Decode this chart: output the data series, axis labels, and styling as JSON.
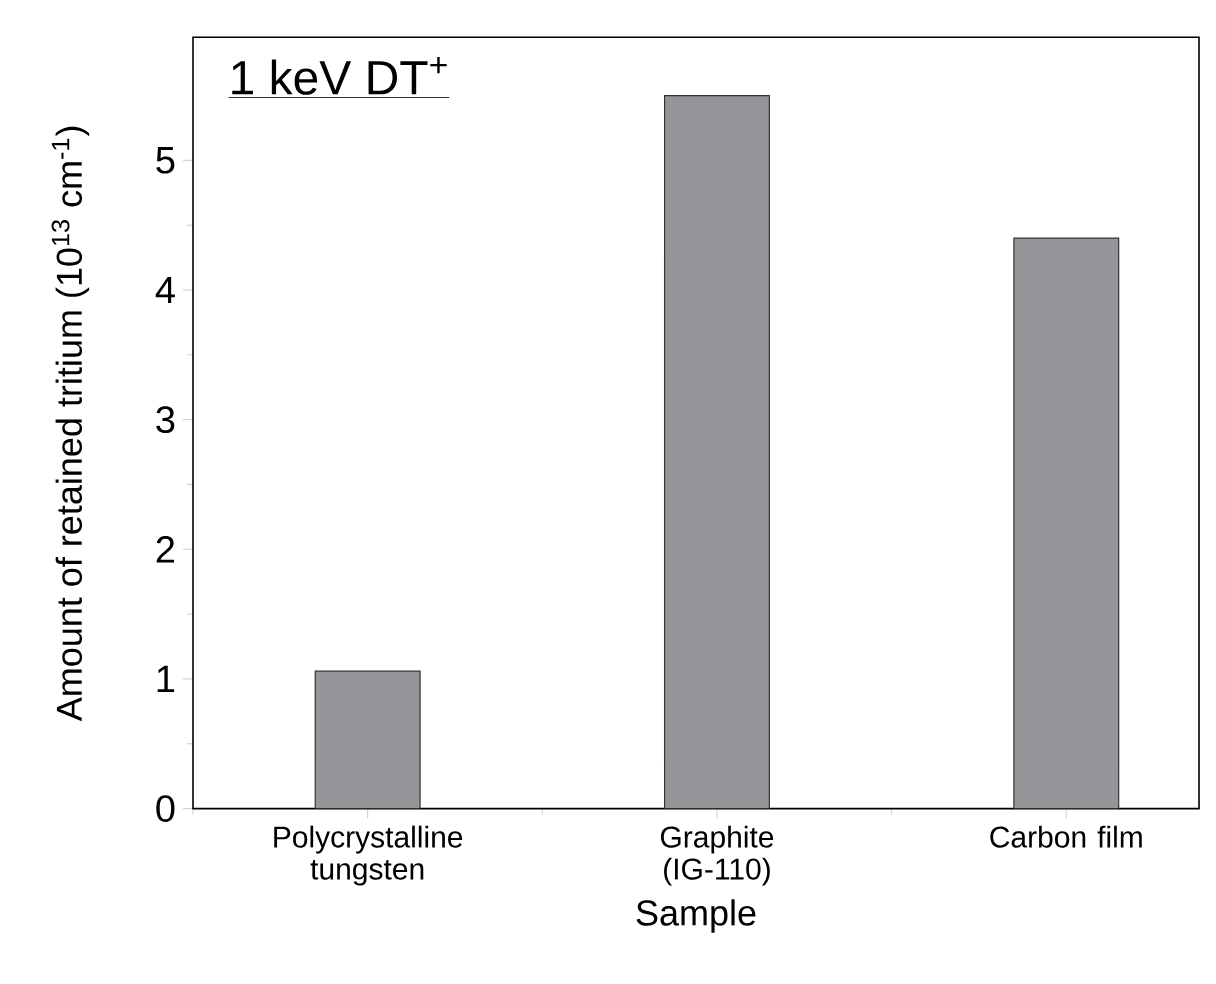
{
  "chart_data": {
    "type": "bar",
    "title": "1 keV DT$^{+}$",
    "xlabel": "Sample",
    "ylabel": "Amount of retained tritium (10$^{13}$ cm$^{-1}$)",
    "categories": [
      "Polycrystalline tungsten",
      "Graphite (IG-110)",
      "Carbon film"
    ],
    "values": [
      1.06,
      5.5,
      4.4
    ],
    "color": "#939598",
    "ylim": [
      0,
      5.95
    ],
    "yticks": [
      0,
      1,
      2,
      3,
      4,
      5
    ]
  }
}
